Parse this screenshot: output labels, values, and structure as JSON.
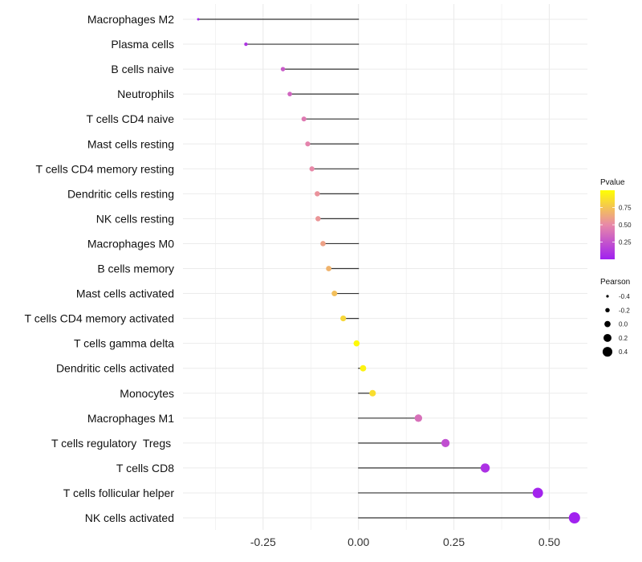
{
  "chart_data": {
    "type": "lollipop",
    "xlabel": "",
    "ylabel": "",
    "xlim": [
      -0.46,
      0.6
    ],
    "x_ticks": [
      {
        "value": -0.25,
        "label": "-0.25"
      },
      {
        "value": 0.0,
        "label": "0.00"
      },
      {
        "value": 0.25,
        "label": "0.25"
      },
      {
        "value": 0.5,
        "label": "0.50"
      }
    ],
    "categories": [
      "Macrophages M2",
      "Plasma cells",
      "B cells naive",
      "Neutrophils",
      "T cells CD4 naive",
      "Mast cells resting",
      "T cells CD4 memory resting",
      "Dendritic cells resting",
      "NK cells resting",
      "Macrophages M0",
      "B cells memory",
      "Mast cells activated",
      "T cells CD4 memory activated",
      "T cells gamma delta",
      "Dendritic cells activated",
      "Monocytes",
      "Macrophages M1",
      "T cells regulatory  Tregs ",
      "T cells CD8",
      "T cells follicular helper",
      "NK cells activated"
    ],
    "pearson": [
      -0.42,
      -0.295,
      -0.198,
      -0.18,
      -0.143,
      -0.133,
      -0.122,
      -0.108,
      -0.106,
      -0.093,
      -0.078,
      -0.063,
      -0.04,
      -0.005,
      0.012,
      0.037,
      0.157,
      0.228,
      0.332,
      0.47,
      0.566
    ],
    "pvalue": [
      0.02,
      0.1,
      0.28,
      0.33,
      0.43,
      0.47,
      0.5,
      0.54,
      0.55,
      0.6,
      0.68,
      0.73,
      0.83,
      0.98,
      0.95,
      0.86,
      0.38,
      0.22,
      0.08,
      0.02,
      0.01
    ],
    "legend_color": {
      "title": "Pvalue",
      "ticks": [
        {
          "value": 0.25,
          "label": "0.25"
        },
        {
          "value": 0.5,
          "label": "0.50"
        },
        {
          "value": 0.75,
          "label": "0.75"
        }
      ],
      "range": [
        0,
        1
      ],
      "color_low": "#a020f0",
      "color_mid": "#e889a8",
      "color_high": "#ffff00"
    },
    "legend_size": {
      "title": "Pearson",
      "entries": [
        {
          "value": -0.4,
          "label": "-0.4"
        },
        {
          "value": -0.2,
          "label": "-0.2"
        },
        {
          "value": 0.0,
          "label": "0.0"
        },
        {
          "value": 0.2,
          "label": "0.2"
        },
        {
          "value": 0.4,
          "label": "0.4"
        }
      ]
    },
    "colors": {
      "stem": "#333333",
      "grid": "#ebebeb",
      "center_line": "#000000"
    }
  }
}
